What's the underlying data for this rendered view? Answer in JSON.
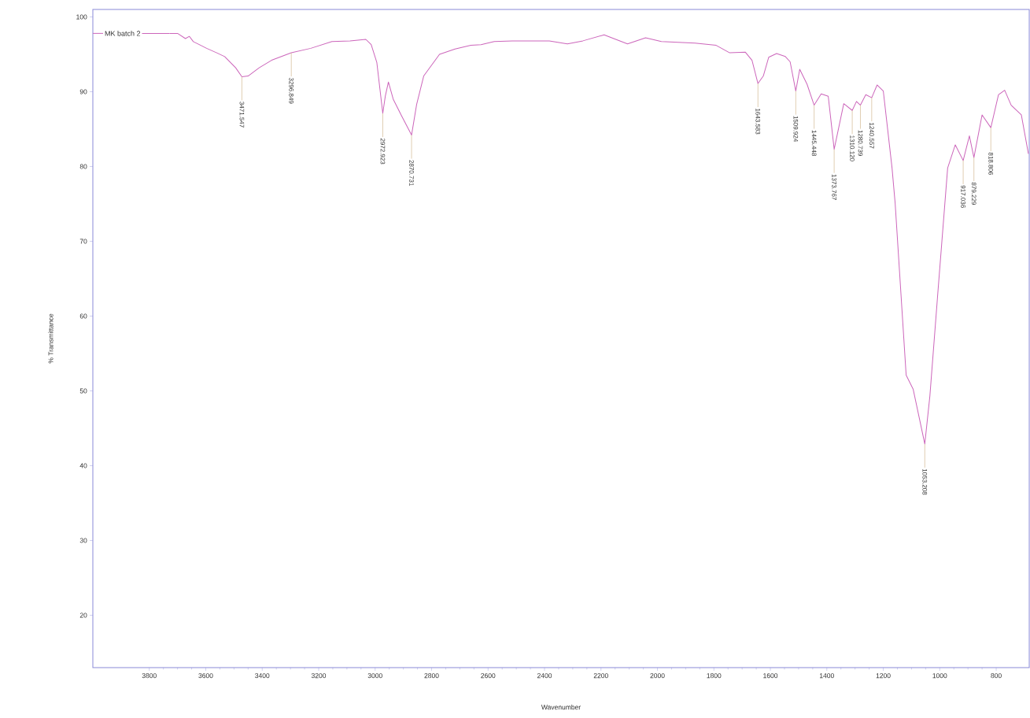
{
  "chart_data": {
    "type": "line",
    "xlabel": "Wavenumber",
    "ylabel": "% Transmittance",
    "xlim": [
      4000,
      683
    ],
    "ylim": [
      13,
      101
    ],
    "xticks": [
      3800,
      3600,
      3400,
      3200,
      3000,
      2800,
      2600,
      2400,
      2200,
      2000,
      1800,
      1600,
      1400,
      1200,
      1000,
      800
    ],
    "yticks": [
      20,
      30,
      40,
      50,
      60,
      70,
      80,
      90,
      100
    ],
    "grid": false,
    "legend": "top left",
    "marker": "none",
    "line_style": "solid",
    "series": [
      {
        "name": "MK batch 2",
        "color": "#cc66bb",
        "x": [
          3728,
          3700,
          3672,
          3658,
          3644,
          3597,
          3561,
          3533,
          3494,
          3472,
          3450,
          3411,
          3367,
          3297,
          3228,
          3153,
          3089,
          3033,
          3014,
          2994,
          2973,
          2964,
          2953,
          2936,
          2908,
          2871,
          2853,
          2828,
          2772,
          2717,
          2661,
          2625,
          2578,
          2514,
          2383,
          2319,
          2264,
          2189,
          2106,
          2042,
          1986,
          1867,
          1792,
          1744,
          1689,
          1665,
          1644,
          1625,
          1606,
          1578,
          1547,
          1530,
          1510,
          1496,
          1470,
          1445,
          1420,
          1395,
          1374,
          1340,
          1310,
          1295,
          1281,
          1262,
          1241,
          1222,
          1200,
          1169,
          1158,
          1119,
          1094,
          1053,
          1035,
          1008,
          972,
          945,
          917,
          895,
          879,
          850,
          819,
          792,
          770,
          747,
          711,
          686
        ],
        "values": [
          97.8,
          97.8,
          97.1,
          97.4,
          96.7,
          95.8,
          95.2,
          94.7,
          93.2,
          92.0,
          92.1,
          93.2,
          94.2,
          95.2,
          95.8,
          96.7,
          96.8,
          97.0,
          96.3,
          93.9,
          87.1,
          89.4,
          91.3,
          89.0,
          86.9,
          84.2,
          88.3,
          92.1,
          95.0,
          95.7,
          96.2,
          96.3,
          96.7,
          96.8,
          96.8,
          96.4,
          96.8,
          97.6,
          96.4,
          97.2,
          96.7,
          96.5,
          96.2,
          95.2,
          95.3,
          94.2,
          91.1,
          92.1,
          94.6,
          95.1,
          94.7,
          94.0,
          90.1,
          93.0,
          91.0,
          88.2,
          89.7,
          89.4,
          82.3,
          88.4,
          87.5,
          88.7,
          88.2,
          89.6,
          89.2,
          90.9,
          90.1,
          79.8,
          75.1,
          52.1,
          50.2,
          42.9,
          49.3,
          62.5,
          79.8,
          82.9,
          80.8,
          84.1,
          81.2,
          86.9,
          85.2,
          89.6,
          90.2,
          88.2,
          86.9,
          81.7
        ]
      }
    ],
    "annotations": [
      {
        "text": "3471.547",
        "x": 3472,
        "y": 92.0
      },
      {
        "text": "3296.849",
        "x": 3297,
        "y": 95.2
      },
      {
        "text": "2972.923",
        "x": 2973,
        "y": 87.1
      },
      {
        "text": "2870.731",
        "x": 2871,
        "y": 84.2
      },
      {
        "text": "1643.583",
        "x": 1644,
        "y": 91.1
      },
      {
        "text": "1509.924",
        "x": 1510,
        "y": 90.1
      },
      {
        "text": "1445.448",
        "x": 1445,
        "y": 88.2
      },
      {
        "text": "1373.767",
        "x": 1374,
        "y": 82.3
      },
      {
        "text": "1310.120",
        "x": 1310,
        "y": 87.5
      },
      {
        "text": "1280.739",
        "x": 1281,
        "y": 88.2
      },
      {
        "text": "1240.557",
        "x": 1241,
        "y": 89.2
      },
      {
        "text": "1053.208",
        "x": 1053,
        "y": 42.9
      },
      {
        "text": "917.036",
        "x": 917,
        "y": 80.8
      },
      {
        "text": "879.229",
        "x": 879,
        "y": 81.2
      },
      {
        "text": "818.806",
        "x": 819,
        "y": 85.2
      }
    ]
  }
}
